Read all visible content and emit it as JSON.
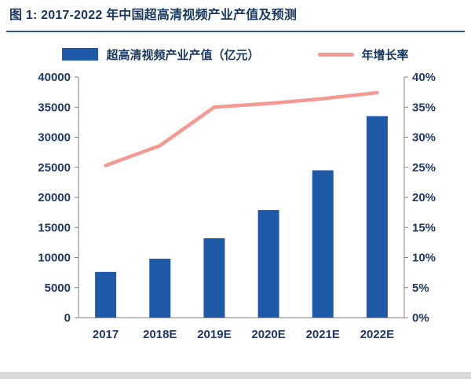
{
  "figure": {
    "title": "图 1: 2017-2022 年中国超高清视频产业产值及预测"
  },
  "legend": {
    "bar_label": "超高清视频产业产值（亿元）",
    "line_label": "年增长率"
  },
  "chart_data": {
    "type": "bar",
    "subtype": "combo-bar-line",
    "title": "2017-2022 年中国超高清视频产业产值及预测",
    "categories": [
      "2017",
      "2018E",
      "2019E",
      "2020E",
      "2021E",
      "2022E"
    ],
    "series": [
      {
        "name": "超高清视频产业产值（亿元）",
        "type": "bar",
        "axis": "left",
        "values": [
          7600,
          9800,
          13200,
          17900,
          24500,
          33500
        ],
        "color": "#1E5AA8"
      },
      {
        "name": "年增长率",
        "type": "line",
        "axis": "right",
        "values": [
          25.3,
          28.6,
          35.0,
          35.6,
          36.4,
          37.4
        ],
        "color": "#F49A92"
      }
    ],
    "left_axis": {
      "min": 0,
      "max": 40000,
      "step": 5000,
      "tick_labels": [
        "0",
        "5000",
        "10000",
        "15000",
        "20000",
        "25000",
        "30000",
        "35000",
        "40000"
      ]
    },
    "right_axis": {
      "min": 0,
      "max": 40,
      "step": 5,
      "tick_labels": [
        "0%",
        "5%",
        "10%",
        "15%",
        "20%",
        "25%",
        "30%",
        "35%",
        "40%"
      ]
    },
    "grid": false,
    "legend_position": "top"
  },
  "colors": {
    "title_text": "#17375E",
    "axis_text": "#1F3864",
    "axis_line": "#808080",
    "bar": "#1E5AA8",
    "line": "#F49A92",
    "title_rule": "#2F5496",
    "footer_strip": "#D8D8D8"
  }
}
